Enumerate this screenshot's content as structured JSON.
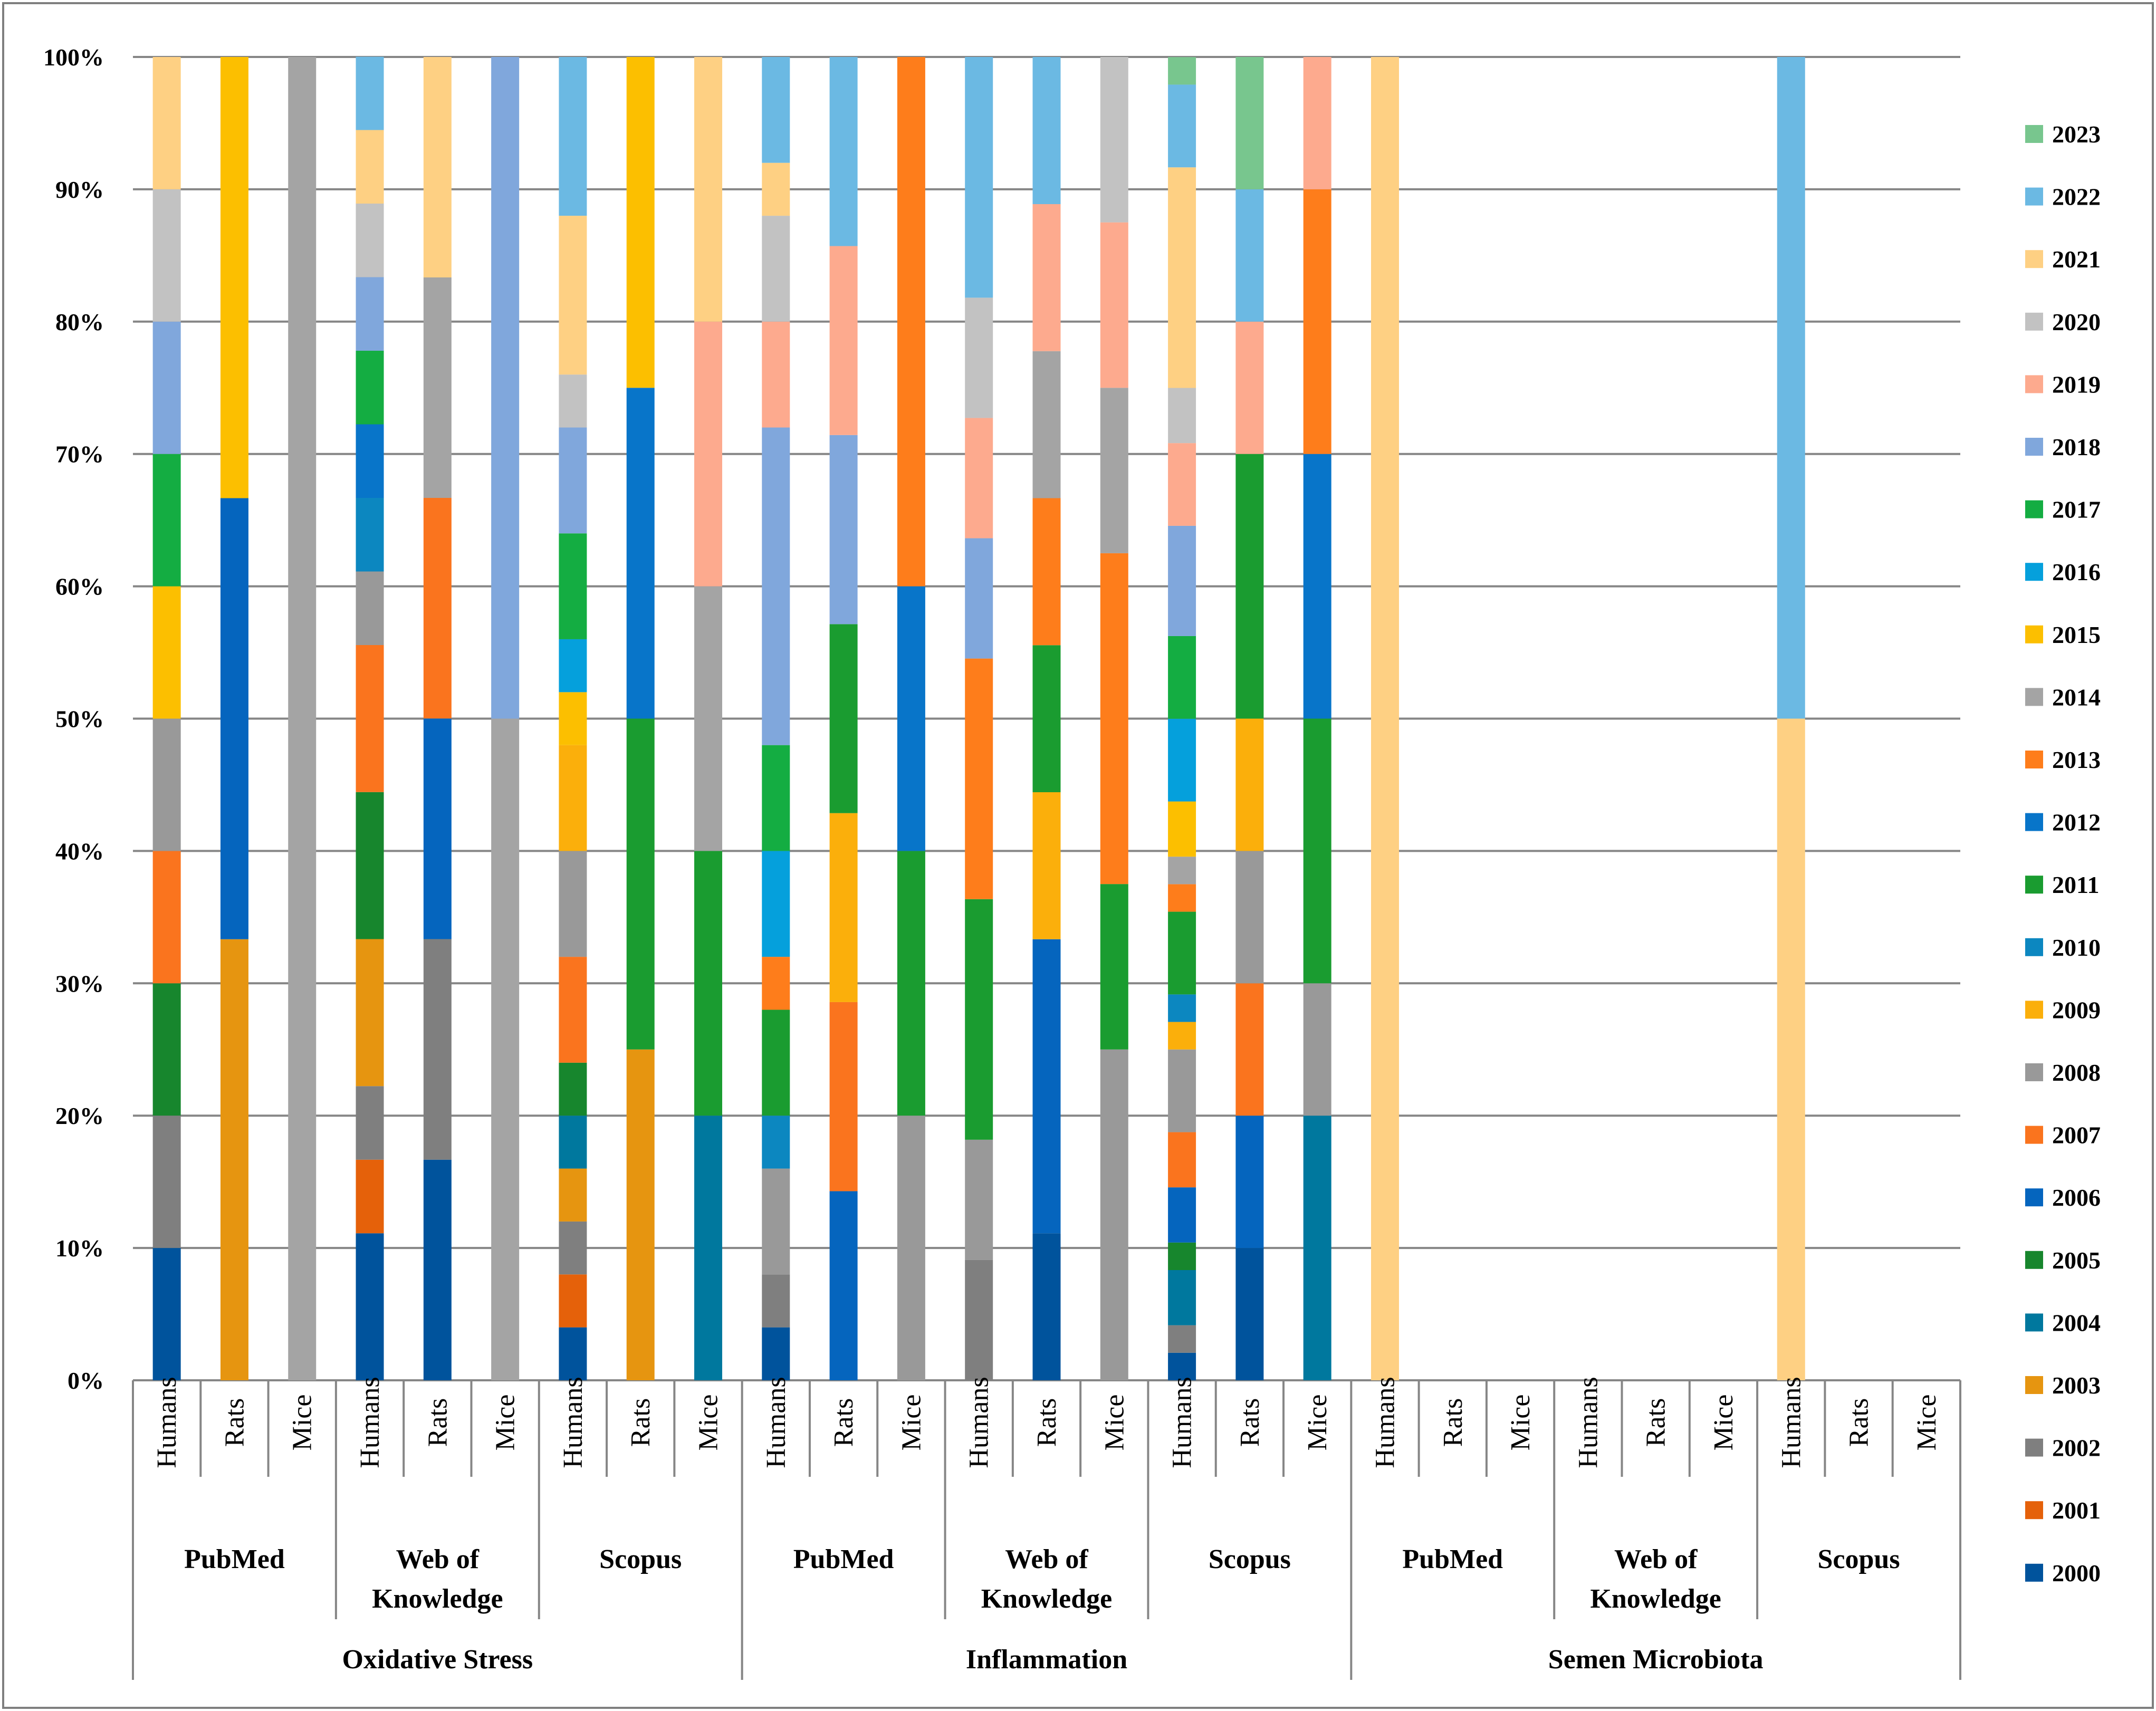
{
  "chart_data": {
    "type": "stacked-bar-100",
    "years": [
      "2000",
      "2001",
      "2002",
      "2003",
      "2004",
      "2005",
      "2006",
      "2007",
      "2008",
      "2009",
      "2010",
      "2011",
      "2012",
      "2013",
      "2014",
      "2015",
      "2016",
      "2017",
      "2018",
      "2019",
      "2020",
      "2021",
      "2022",
      "2023"
    ],
    "colors": {
      "2000": "#00539c",
      "2001": "#e5610a",
      "2002": "#7f7f7f",
      "2003": "#e69510",
      "2004": "#00789e",
      "2005": "#17862d",
      "2006": "#0565be",
      "2007": "#fa741e",
      "2008": "#999999",
      "2009": "#fbaf0b",
      "2010": "#0c87c0",
      "2011": "#1a9c30",
      "2012": "#0875c9",
      "2013": "#fe7d1b",
      "2014": "#a4a4a4",
      "2015": "#fcbf00",
      "2016": "#05a0dc",
      "2017": "#14ad42",
      "2018": "#80a7dc",
      "2019": "#fdaa8e",
      "2020": "#c2c2c2",
      "2021": "#fed083",
      "2022": "#6bb9e3",
      "2023": "#78c68e"
    },
    "y_ticks": [
      "0%",
      "10%",
      "20%",
      "30%",
      "40%",
      "50%",
      "60%",
      "70%",
      "80%",
      "90%",
      "100%"
    ],
    "ylim": [
      0,
      100
    ],
    "topics": [
      {
        "name": "Oxidative Stress",
        "databases": [
          {
            "name": "PubMed",
            "bars": [
              {
                "label": "Humans",
                "segments": [
                  [
                    "2000",
                    10
                  ],
                  [
                    "2002",
                    10
                  ],
                  [
                    "2005",
                    10
                  ],
                  [
                    "2007",
                    10
                  ],
                  [
                    "2008",
                    10
                  ],
                  [
                    "2015",
                    10
                  ],
                  [
                    "2017",
                    10
                  ],
                  [
                    "2018",
                    10
                  ],
                  [
                    "2020",
                    10
                  ],
                  [
                    "2021",
                    10
                  ]
                ]
              },
              {
                "label": "Rats",
                "segments": [
                  [
                    "2003",
                    33.33
                  ],
                  [
                    "2006",
                    33.33
                  ],
                  [
                    "2015",
                    33.34
                  ]
                ]
              },
              {
                "label": "Mice",
                "segments": [
                  [
                    "2014",
                    100
                  ]
                ]
              }
            ]
          },
          {
            "name": "Web of Knowledge",
            "bars": [
              {
                "label": "Humans",
                "segments": [
                  [
                    "2000",
                    11.11
                  ],
                  [
                    "2001",
                    5.56
                  ],
                  [
                    "2002",
                    5.56
                  ],
                  [
                    "2003",
                    11.11
                  ],
                  [
                    "2005",
                    11.11
                  ],
                  [
                    "2007",
                    11.11
                  ],
                  [
                    "2008",
                    5.56
                  ],
                  [
                    "2010",
                    5.56
                  ],
                  [
                    "2012",
                    5.56
                  ],
                  [
                    "2017",
                    5.56
                  ],
                  [
                    "2018",
                    5.56
                  ],
                  [
                    "2020",
                    5.56
                  ],
                  [
                    "2021",
                    5.56
                  ],
                  [
                    "2022",
                    5.54
                  ]
                ]
              },
              {
                "label": "Rats",
                "segments": [
                  [
                    "2000",
                    16.67
                  ],
                  [
                    "2002",
                    16.67
                  ],
                  [
                    "2006",
                    16.67
                  ],
                  [
                    "2007",
                    16.67
                  ],
                  [
                    "2014",
                    16.66
                  ],
                  [
                    "2021",
                    16.66
                  ]
                ]
              },
              {
                "label": "Mice",
                "segments": [
                  [
                    "2014",
                    50
                  ],
                  [
                    "2018",
                    50
                  ]
                ]
              }
            ]
          },
          {
            "name": "Scopus",
            "bars": [
              {
                "label": "Humans",
                "segments": [
                  [
                    "2000",
                    4
                  ],
                  [
                    "2001",
                    4
                  ],
                  [
                    "2002",
                    4
                  ],
                  [
                    "2003",
                    4
                  ],
                  [
                    "2004",
                    4
                  ],
                  [
                    "2005",
                    4
                  ],
                  [
                    "2007",
                    8
                  ],
                  [
                    "2008",
                    8
                  ],
                  [
                    "2009",
                    8
                  ],
                  [
                    "2015",
                    4
                  ],
                  [
                    "2016",
                    4
                  ],
                  [
                    "2017",
                    8
                  ],
                  [
                    "2018",
                    8
                  ],
                  [
                    "2020",
                    4
                  ],
                  [
                    "2021",
                    12
                  ],
                  [
                    "2022",
                    12
                  ]
                ]
              },
              {
                "label": "Rats",
                "segments": [
                  [
                    "2003",
                    25
                  ],
                  [
                    "2011",
                    25
                  ],
                  [
                    "2012",
                    25
                  ],
                  [
                    "2015",
                    25
                  ]
                ]
              },
              {
                "label": "Mice",
                "segments": [
                  [
                    "2004",
                    20
                  ],
                  [
                    "2011",
                    20
                  ],
                  [
                    "2014",
                    20
                  ],
                  [
                    "2019",
                    20
                  ],
                  [
                    "2021",
                    20
                  ]
                ]
              }
            ]
          }
        ]
      },
      {
        "name": "Inflammation",
        "databases": [
          {
            "name": "PubMed",
            "bars": [
              {
                "label": "Humans",
                "segments": [
                  [
                    "2000",
                    4
                  ],
                  [
                    "2002",
                    4
                  ],
                  [
                    "2008",
                    8
                  ],
                  [
                    "2010",
                    4
                  ],
                  [
                    "2011",
                    8
                  ],
                  [
                    "2013",
                    4
                  ],
                  [
                    "2016",
                    8
                  ],
                  [
                    "2017",
                    8
                  ],
                  [
                    "2018",
                    24
                  ],
                  [
                    "2019",
                    8
                  ],
                  [
                    "2020",
                    8
                  ],
                  [
                    "2021",
                    4
                  ],
                  [
                    "2022",
                    8
                  ]
                ]
              },
              {
                "label": "Rats",
                "segments": [
                  [
                    "2006",
                    14.29
                  ],
                  [
                    "2007",
                    14.29
                  ],
                  [
                    "2009",
                    14.28
                  ],
                  [
                    "2011",
                    14.28
                  ],
                  [
                    "2018",
                    14.29
                  ],
                  [
                    "2019",
                    14.28
                  ],
                  [
                    "2022",
                    14.29
                  ]
                ]
              },
              {
                "label": "Mice",
                "segments": [
                  [
                    "2008",
                    20
                  ],
                  [
                    "2011",
                    20
                  ],
                  [
                    "2012",
                    20
                  ],
                  [
                    "2013",
                    40
                  ]
                ]
              }
            ]
          },
          {
            "name": "Web of Knowledge",
            "bars": [
              {
                "label": "Humans",
                "segments": [
                  [
                    "2002",
                    9.09
                  ],
                  [
                    "2008",
                    9.09
                  ],
                  [
                    "2011",
                    18.18
                  ],
                  [
                    "2013",
                    18.18
                  ],
                  [
                    "2018",
                    9.09
                  ],
                  [
                    "2019",
                    9.09
                  ],
                  [
                    "2020",
                    9.09
                  ],
                  [
                    "2022",
                    18.19
                  ]
                ]
              },
              {
                "label": "Rats",
                "segments": [
                  [
                    "2000",
                    11.11
                  ],
                  [
                    "2006",
                    22.22
                  ],
                  [
                    "2009",
                    11.11
                  ],
                  [
                    "2011",
                    11.11
                  ],
                  [
                    "2013",
                    11.11
                  ],
                  [
                    "2014",
                    11.11
                  ],
                  [
                    "2019",
                    11.11
                  ],
                  [
                    "2022",
                    11.12
                  ]
                ]
              },
              {
                "label": "Mice",
                "segments": [
                  [
                    "2008",
                    25
                  ],
                  [
                    "2011",
                    12.5
                  ],
                  [
                    "2013",
                    25
                  ],
                  [
                    "2014",
                    12.5
                  ],
                  [
                    "2019",
                    12.5
                  ],
                  [
                    "2020",
                    12.5
                  ]
                ]
              }
            ]
          },
          {
            "name": "Scopus",
            "bars": [
              {
                "label": "Humans",
                "segments": [
                  [
                    "2000",
                    2.08
                  ],
                  [
                    "2002",
                    2.08
                  ],
                  [
                    "2004",
                    4.17
                  ],
                  [
                    "2005",
                    2.08
                  ],
                  [
                    "2006",
                    4.17
                  ],
                  [
                    "2007",
                    4.17
                  ],
                  [
                    "2008",
                    6.25
                  ],
                  [
                    "2009",
                    2.08
                  ],
                  [
                    "2010",
                    2.08
                  ],
                  [
                    "2011",
                    6.25
                  ],
                  [
                    "2013",
                    2.08
                  ],
                  [
                    "2014",
                    2.08
                  ],
                  [
                    "2015",
                    4.17
                  ],
                  [
                    "2016",
                    6.25
                  ],
                  [
                    "2017",
                    6.25
                  ],
                  [
                    "2018",
                    8.33
                  ],
                  [
                    "2019",
                    6.25
                  ],
                  [
                    "2020",
                    4.17
                  ],
                  [
                    "2021",
                    16.67
                  ],
                  [
                    "2022",
                    6.25
                  ],
                  [
                    "2023",
                    2.08
                  ]
                ]
              },
              {
                "label": "Rats",
                "segments": [
                  [
                    "2000",
                    10
                  ],
                  [
                    "2006",
                    10
                  ],
                  [
                    "2007",
                    10
                  ],
                  [
                    "2008",
                    10
                  ],
                  [
                    "2009",
                    10
                  ],
                  [
                    "2011",
                    20
                  ],
                  [
                    "2019",
                    10
                  ],
                  [
                    "2022",
                    10
                  ],
                  [
                    "2023",
                    10
                  ]
                ]
              },
              {
                "label": "Mice",
                "segments": [
                  [
                    "2004",
                    20
                  ],
                  [
                    "2008",
                    10
                  ],
                  [
                    "2011",
                    20
                  ],
                  [
                    "2012",
                    20
                  ],
                  [
                    "2013",
                    20
                  ],
                  [
                    "2019",
                    10
                  ]
                ]
              }
            ]
          }
        ]
      },
      {
        "name": "Semen Microbiota",
        "databases": [
          {
            "name": "PubMed",
            "bars": [
              {
                "label": "Humans",
                "segments": [
                  [
                    "2021",
                    100
                  ]
                ]
              },
              {
                "label": "Rats",
                "segments": []
              },
              {
                "label": "Mice",
                "segments": []
              }
            ]
          },
          {
            "name": "Web of Knowledge",
            "bars": [
              {
                "label": "Humans",
                "segments": []
              },
              {
                "label": "Rats",
                "segments": []
              },
              {
                "label": "Mice",
                "segments": []
              }
            ]
          },
          {
            "name": "Scopus",
            "bars": [
              {
                "label": "Humans",
                "segments": [
                  [
                    "2021",
                    50
                  ],
                  [
                    "2022",
                    50
                  ]
                ]
              },
              {
                "label": "Rats",
                "segments": []
              },
              {
                "label": "Mice",
                "segments": []
              }
            ]
          }
        ]
      }
    ],
    "legend": [
      "2023",
      "2022",
      "2021",
      "2020",
      "2019",
      "2018",
      "2017",
      "2016",
      "2015",
      "2014",
      "2013",
      "2012",
      "2011",
      "2010",
      "2009",
      "2008",
      "2007",
      "2006",
      "2005",
      "2004",
      "2003",
      "2002",
      "2001",
      "2000"
    ],
    "legend_position": "right",
    "grid": true
  }
}
